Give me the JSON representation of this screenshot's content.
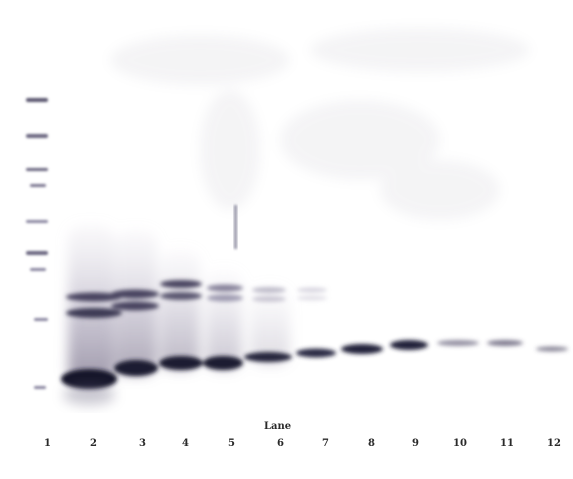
{
  "figure": {
    "axis_title": "Lane",
    "lane_numbers": [
      "1",
      "2",
      "3",
      "4",
      "5",
      "6",
      "7",
      "8",
      "9",
      "10",
      "11",
      "12"
    ]
  },
  "colors": {
    "band_dark": "#17172b",
    "band_mid": "#4a4560",
    "smear": "#b7b2c3",
    "background": "#ffffff"
  }
}
